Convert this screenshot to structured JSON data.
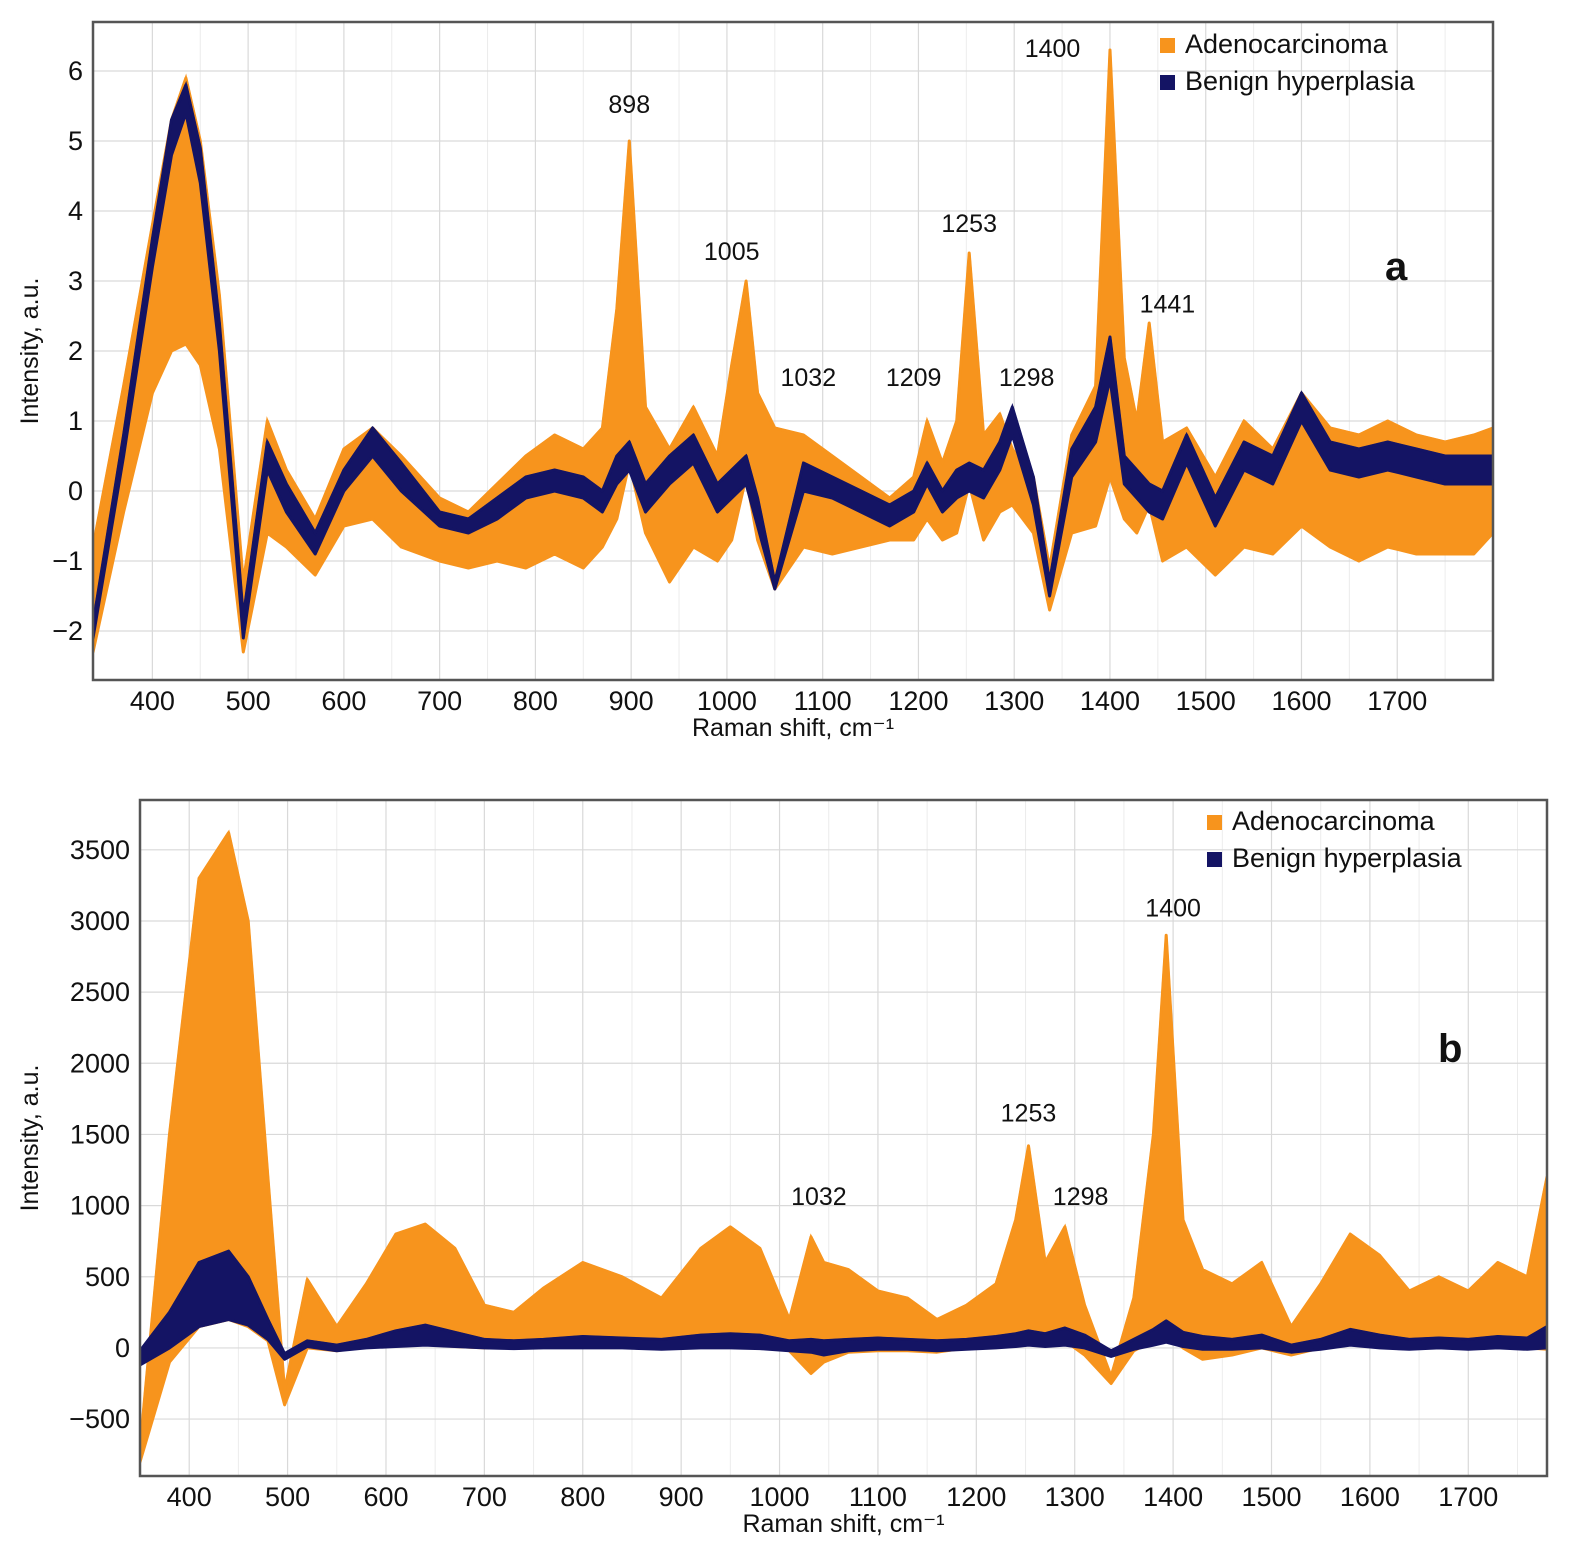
{
  "chart_data": [
    {
      "panel": "a",
      "type": "line",
      "xlabel": "Raman shift, cm⁻¹",
      "ylabel": "Intensity, a.u.",
      "xlim": [
        338,
        1800
      ],
      "ylim": [
        -2.7,
        6.7
      ],
      "xticks": [
        400,
        500,
        600,
        700,
        800,
        900,
        1000,
        1100,
        1200,
        1300,
        1400,
        1500,
        1600,
        1700
      ],
      "yticks": [
        -2,
        -1,
        0,
        1,
        2,
        3,
        4,
        5,
        6
      ],
      "ytick_labels": [
        "−2",
        "−1",
        "0",
        "1",
        "2",
        "3",
        "4",
        "5",
        "6"
      ],
      "legend": {
        "position": "top-right",
        "entries": [
          {
            "label": "Adenocarcinoma",
            "color": "#F7941D"
          },
          {
            "label": "Benign hyperplasia",
            "color": "#141464"
          }
        ]
      },
      "series": [
        {
          "name": "Adenocarcinoma",
          "color": "#F7941D",
          "x": [
            338,
            370,
            400,
            420,
            435,
            450,
            470,
            495,
            520,
            540,
            570,
            600,
            630,
            660,
            700,
            730,
            760,
            790,
            820,
            850,
            870,
            885,
            898,
            915,
            940,
            965,
            990,
            1005,
            1020,
            1032,
            1050,
            1080,
            1110,
            1140,
            1170,
            1195,
            1209,
            1225,
            1240,
            1253,
            1268,
            1285,
            1298,
            1320,
            1337,
            1360,
            1385,
            1400,
            1415,
            1428,
            1441,
            1455,
            1480,
            1510,
            1540,
            1570,
            1600,
            1630,
            1660,
            1690,
            1720,
            1750,
            1780,
            1800
          ],
          "upper": [
            -0.8,
            1.5,
            3.8,
            5.3,
            5.9,
            5.0,
            2.8,
            -1.3,
            1.0,
            0.3,
            -0.4,
            0.6,
            0.9,
            0.5,
            -0.1,
            -0.3,
            0.1,
            0.5,
            0.8,
            0.6,
            0.9,
            2.6,
            5.0,
            1.2,
            0.6,
            1.2,
            0.5,
            1.8,
            3.0,
            1.4,
            0.9,
            0.8,
            0.5,
            0.2,
            -0.1,
            0.2,
            1.0,
            0.4,
            1.0,
            3.4,
            0.8,
            1.1,
            0.6,
            0.2,
            -1.1,
            0.8,
            1.5,
            6.3,
            1.9,
            1.0,
            2.4,
            0.7,
            0.9,
            0.2,
            1.0,
            0.6,
            1.4,
            0.9,
            0.8,
            1.0,
            0.8,
            0.7,
            0.8,
            0.9
          ],
          "lower": [
            -2.3,
            -0.3,
            1.4,
            2.0,
            2.1,
            1.8,
            0.6,
            -2.3,
            -0.6,
            -0.8,
            -1.2,
            -0.5,
            -0.4,
            -0.8,
            -1.0,
            -1.1,
            -1.0,
            -1.1,
            -0.9,
            -1.1,
            -0.8,
            -0.4,
            0.4,
            -0.6,
            -1.3,
            -0.8,
            -1.0,
            -0.7,
            0.2,
            -0.7,
            -1.4,
            -0.8,
            -0.9,
            -0.8,
            -0.7,
            -0.7,
            -0.4,
            -0.7,
            -0.6,
            0.1,
            -0.7,
            -0.3,
            -0.2,
            -0.6,
            -1.7,
            -0.6,
            -0.5,
            0.2,
            -0.4,
            -0.6,
            -0.2,
            -1.0,
            -0.8,
            -1.2,
            -0.8,
            -0.9,
            -0.5,
            -0.8,
            -1.0,
            -0.8,
            -0.9,
            -0.9,
            -0.9,
            -0.6
          ]
        },
        {
          "name": "Benign hyperplasia",
          "color": "#141464",
          "x": [
            338,
            370,
            400,
            420,
            435,
            450,
            470,
            495,
            520,
            540,
            570,
            600,
            630,
            660,
            700,
            730,
            760,
            790,
            820,
            850,
            870,
            885,
            898,
            915,
            940,
            965,
            990,
            1005,
            1020,
            1032,
            1050,
            1080,
            1110,
            1140,
            1170,
            1195,
            1209,
            1225,
            1240,
            1253,
            1268,
            1285,
            1298,
            1320,
            1337,
            1360,
            1385,
            1400,
            1415,
            1428,
            1441,
            1455,
            1480,
            1510,
            1540,
            1570,
            1600,
            1630,
            1660,
            1690,
            1720,
            1750,
            1780,
            1800
          ],
          "upper": [
            -1.9,
            0.8,
            3.6,
            5.3,
            5.8,
            4.9,
            2.4,
            -1.8,
            0.7,
            0.1,
            -0.6,
            0.3,
            0.9,
            0.4,
            -0.3,
            -0.4,
            -0.1,
            0.2,
            0.3,
            0.2,
            0.0,
            0.5,
            0.7,
            0.1,
            0.5,
            0.8,
            0.1,
            0.3,
            0.5,
            -0.1,
            -1.3,
            0.4,
            0.2,
            0.0,
            -0.2,
            0.0,
            0.4,
            0.0,
            0.3,
            0.4,
            0.3,
            0.7,
            1.2,
            0.2,
            -1.3,
            0.6,
            1.2,
            2.2,
            0.5,
            0.3,
            0.1,
            0.0,
            0.8,
            -0.1,
            0.7,
            0.5,
            1.4,
            0.7,
            0.6,
            0.7,
            0.6,
            0.5,
            0.5,
            0.5
          ],
          "lower": [
            -2.1,
            0.5,
            3.2,
            4.8,
            5.4,
            4.4,
            2.0,
            -2.1,
            0.3,
            -0.3,
            -0.9,
            0.0,
            0.5,
            0.0,
            -0.5,
            -0.6,
            -0.4,
            -0.1,
            0.0,
            -0.1,
            -0.3,
            0.1,
            0.3,
            -0.3,
            0.1,
            0.4,
            -0.3,
            -0.1,
            0.1,
            -0.5,
            -1.4,
            0.0,
            -0.1,
            -0.3,
            -0.5,
            -0.3,
            0.1,
            -0.3,
            -0.1,
            0.0,
            -0.1,
            0.3,
            0.8,
            -0.2,
            -1.5,
            0.2,
            0.7,
            1.6,
            0.1,
            -0.1,
            -0.3,
            -0.4,
            0.4,
            -0.5,
            0.3,
            0.1,
            1.0,
            0.3,
            0.2,
            0.3,
            0.2,
            0.1,
            0.1,
            0.1
          ]
        }
      ],
      "annotations": [
        {
          "text": "898",
          "x": 898,
          "y": 5.4
        },
        {
          "text": "1005",
          "x": 1005,
          "y": 3.3
        },
        {
          "text": "1032",
          "x": 1085,
          "y": 1.5
        },
        {
          "text": "1209",
          "x": 1195,
          "y": 1.5
        },
        {
          "text": "1253",
          "x": 1253,
          "y": 3.7
        },
        {
          "text": "1298",
          "x": 1313,
          "y": 1.5
        },
        {
          "text": "1400",
          "x": 1340,
          "y": 6.2
        },
        {
          "text": "1441",
          "x": 1460,
          "y": 2.55
        }
      ],
      "panel_label": "a"
    },
    {
      "panel": "b",
      "type": "line",
      "xlabel": "Raman shift, cm⁻¹",
      "ylabel": "Intensity, a.u.",
      "xlim": [
        350,
        1780
      ],
      "ylim": [
        -900,
        3850
      ],
      "xticks": [
        400,
        500,
        600,
        700,
        800,
        900,
        1000,
        1100,
        1200,
        1300,
        1400,
        1500,
        1600,
        1700
      ],
      "yticks": [
        -500,
        0,
        500,
        1000,
        1500,
        2000,
        2500,
        3000,
        3500
      ],
      "ytick_labels": [
        "−500",
        "0",
        "500",
        "1000",
        "1500",
        "2000",
        "2500",
        "3000",
        "3500"
      ],
      "legend": {
        "position": "top-right",
        "entries": [
          {
            "label": "Adenocarcinoma",
            "color": "#F7941D"
          },
          {
            "label": "Benign hyperplasia",
            "color": "#141464"
          }
        ]
      },
      "series": [
        {
          "name": "Adenocarcinoma",
          "color": "#F7941D",
          "x": [
            350,
            380,
            410,
            440,
            460,
            480,
            497,
            520,
            550,
            580,
            610,
            640,
            670,
            700,
            730,
            760,
            800,
            840,
            880,
            920,
            950,
            980,
            1010,
            1032,
            1045,
            1070,
            1100,
            1130,
            1160,
            1190,
            1220,
            1240,
            1253,
            1270,
            1290,
            1310,
            1337,
            1360,
            1380,
            1393,
            1410,
            1430,
            1460,
            1490,
            1520,
            1550,
            1580,
            1610,
            1640,
            1670,
            1700,
            1730,
            1760,
            1780
          ],
          "upper": [
            -700,
            1500,
            3300,
            3620,
            3000,
            1200,
            -300,
            480,
            150,
            450,
            800,
            870,
            700,
            300,
            250,
            420,
            600,
            500,
            350,
            700,
            850,
            700,
            200,
            780,
            600,
            550,
            400,
            350,
            200,
            300,
            450,
            900,
            1420,
            600,
            850,
            300,
            -200,
            350,
            1500,
            2900,
            900,
            550,
            450,
            600,
            150,
            450,
            800,
            650,
            400,
            500,
            400,
            600,
            500,
            1200
          ],
          "lower": [
            -800,
            -100,
            150,
            200,
            150,
            50,
            -400,
            0,
            -20,
            10,
            20,
            30,
            10,
            0,
            0,
            5,
            10,
            10,
            0,
            10,
            15,
            10,
            -20,
            -180,
            -100,
            -30,
            -20,
            -20,
            -30,
            0,
            20,
            50,
            80,
            40,
            50,
            -50,
            -250,
            -20,
            50,
            100,
            0,
            -80,
            -50,
            0,
            -50,
            0,
            50,
            20,
            0,
            20,
            0,
            10,
            0,
            -10
          ]
        },
        {
          "name": "Benign hyperplasia",
          "color": "#141464",
          "x": [
            350,
            380,
            410,
            440,
            460,
            480,
            497,
            520,
            550,
            580,
            610,
            640,
            670,
            700,
            730,
            760,
            800,
            840,
            880,
            920,
            950,
            980,
            1010,
            1032,
            1045,
            1070,
            1100,
            1130,
            1160,
            1190,
            1220,
            1240,
            1253,
            1270,
            1290,
            1310,
            1337,
            1360,
            1380,
            1393,
            1410,
            1430,
            1460,
            1490,
            1520,
            1550,
            1580,
            1610,
            1640,
            1670,
            1700,
            1730,
            1760,
            1780
          ],
          "upper": [
            -20,
            250,
            600,
            680,
            500,
            200,
            -40,
            50,
            20,
            60,
            120,
            160,
            110,
            60,
            50,
            60,
            80,
            70,
            60,
            90,
            100,
            90,
            50,
            60,
            50,
            60,
            70,
            60,
            50,
            60,
            80,
            100,
            120,
            100,
            140,
            90,
            -20,
            60,
            130,
            190,
            110,
            80,
            60,
            90,
            20,
            60,
            130,
            90,
            60,
            70,
            60,
            80,
            70,
            150
          ],
          "lower": [
            -120,
            0,
            150,
            200,
            160,
            60,
            -80,
            10,
            -20,
            0,
            10,
            20,
            10,
            0,
            -5,
            0,
            0,
            0,
            -10,
            0,
            0,
            -5,
            -20,
            -30,
            -50,
            -20,
            -10,
            -10,
            -20,
            -10,
            0,
            10,
            20,
            10,
            20,
            0,
            -60,
            -10,
            20,
            40,
            10,
            -10,
            -10,
            0,
            -30,
            -10,
            20,
            0,
            -10,
            0,
            -10,
            0,
            -10,
            0
          ]
        }
      ],
      "annotations": [
        {
          "text": "1032",
          "x": 1040,
          "y": 1005
        },
        {
          "text": "1253",
          "x": 1253,
          "y": 1590
        },
        {
          "text": "1298",
          "x": 1306,
          "y": 1005
        },
        {
          "text": "1400",
          "x": 1400,
          "y": 3030
        }
      ],
      "panel_label": "b"
    }
  ]
}
